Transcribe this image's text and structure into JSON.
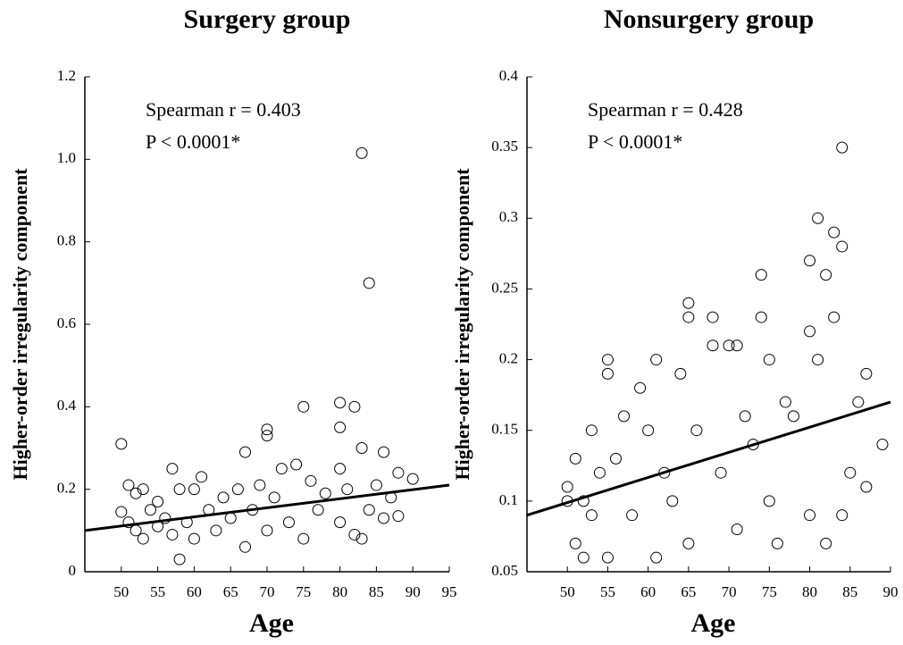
{
  "chart_data": [
    {
      "type": "scatter",
      "title": "Surgery group",
      "x_label": "Age",
      "y_label": "Higher-order irregularity component",
      "annotations": [
        "Spearman r = 0.403",
        "P < 0.0001*"
      ],
      "x": [
        50,
        50,
        51,
        51,
        52,
        52,
        53,
        53,
        54,
        55,
        55,
        56,
        57,
        57,
        58,
        58,
        59,
        60,
        60,
        61,
        62,
        63,
        64,
        65,
        66,
        67,
        67,
        68,
        69,
        70,
        70,
        70,
        71,
        72,
        73,
        74,
        75,
        75,
        76,
        77,
        78,
        80,
        80,
        80,
        80,
        81,
        82,
        82,
        83,
        83,
        83,
        84,
        84,
        85,
        86,
        86,
        87,
        88,
        88,
        90
      ],
      "y": [
        0.31,
        0.145,
        0.21,
        0.12,
        0.19,
        0.1,
        0.2,
        0.08,
        0.15,
        0.17,
        0.11,
        0.13,
        0.25,
        0.09,
        0.03,
        0.2,
        0.12,
        0.2,
        0.08,
        0.23,
        0.15,
        0.1,
        0.18,
        0.13,
        0.2,
        0.29,
        0.06,
        0.15,
        0.21,
        0.345,
        0.33,
        0.1,
        0.18,
        0.25,
        0.12,
        0.26,
        0.4,
        0.08,
        0.22,
        0.15,
        0.19,
        0.41,
        0.35,
        0.25,
        0.12,
        0.2,
        0.4,
        0.09,
        1.015,
        0.3,
        0.08,
        0.7,
        0.15,
        0.21,
        0.29,
        0.13,
        0.18,
        0.24,
        0.135,
        0.225
      ],
      "trend": {
        "x": [
          45,
          95
        ],
        "y": [
          0.1,
          0.21
        ]
      },
      "xlim": [
        45,
        95
      ],
      "xticks": [
        50,
        55,
        60,
        65,
        70,
        75,
        80,
        85,
        90,
        95
      ],
      "ylim": [
        0,
        1.2
      ],
      "yticks": [
        0,
        0.2,
        0.4,
        0.6,
        0.8,
        {
          "value": 1,
          "label": "1.0"
        },
        1.2
      ]
    },
    {
      "type": "scatter",
      "title": "Nonsurgery group",
      "x_label": "Age",
      "y_label": "Higher-order irregularity component",
      "annotations": [
        "Spearman r = 0.428",
        "P < 0.0001*"
      ],
      "x": [
        50,
        50,
        51,
        51,
        52,
        52,
        53,
        53,
        54,
        55,
        55,
        55,
        56,
        57,
        58,
        59,
        60,
        61,
        61,
        62,
        63,
        64,
        65,
        65,
        65,
        66,
        68,
        68,
        69,
        70,
        71,
        71,
        72,
        73,
        74,
        74,
        75,
        75,
        76,
        77,
        78,
        80,
        80,
        80,
        81,
        81,
        82,
        82,
        83,
        83,
        84,
        84,
        84,
        85,
        86,
        87,
        87,
        89
      ],
      "y": [
        0.11,
        0.1,
        0.13,
        0.07,
        0.06,
        0.1,
        0.15,
        0.09,
        0.12,
        0.2,
        0.19,
        0.06,
        0.13,
        0.16,
        0.09,
        0.18,
        0.15,
        0.2,
        0.06,
        0.12,
        0.1,
        0.19,
        0.24,
        0.23,
        0.07,
        0.15,
        0.23,
        0.21,
        0.12,
        0.21,
        0.21,
        0.08,
        0.16,
        0.14,
        0.26,
        0.23,
        0.2,
        0.1,
        0.07,
        0.17,
        0.16,
        0.27,
        0.22,
        0.09,
        0.3,
        0.2,
        0.26,
        0.07,
        0.29,
        0.23,
        0.35,
        0.28,
        0.09,
        0.12,
        0.17,
        0.19,
        0.11,
        0.14
      ],
      "trend": {
        "x": [
          45,
          90
        ],
        "y": [
          0.09,
          0.17
        ]
      },
      "xlim": [
        45,
        90
      ],
      "xticks": [
        50,
        55,
        60,
        65,
        70,
        75,
        80,
        85,
        90
      ],
      "ylim": [
        0.05,
        0.4
      ],
      "yticks": [
        0.05,
        0.1,
        0.15,
        0.2,
        0.25,
        0.3,
        0.35,
        0.4
      ]
    }
  ]
}
